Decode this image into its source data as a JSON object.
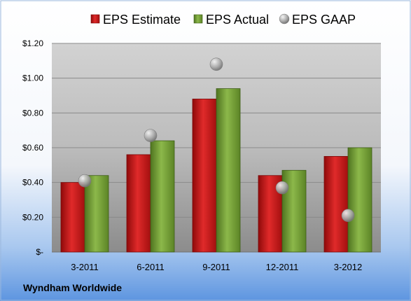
{
  "chart_data": {
    "type": "bar",
    "categories": [
      "3-2011",
      "6-2011",
      "9-2011",
      "12-2011",
      "3-2012"
    ],
    "series": [
      {
        "name": "EPS Estimate",
        "values": [
          0.4,
          0.56,
          0.88,
          0.44,
          0.55
        ],
        "color": "#cc1111",
        "kind": "bar"
      },
      {
        "name": "EPS Actual",
        "values": [
          0.44,
          0.64,
          0.94,
          0.47,
          0.6
        ],
        "color": "#6e9b2e",
        "kind": "bar"
      },
      {
        "name": "EPS GAAP",
        "values": [
          0.41,
          0.67,
          1.08,
          0.37,
          0.21
        ],
        "color": "#a0a0a0",
        "kind": "marker"
      }
    ],
    "ylim": [
      0,
      1.2
    ],
    "yticks": [
      0,
      0.2,
      0.4,
      0.6,
      0.8,
      1.0,
      1.2
    ],
    "ytick_labels": [
      "$-",
      "$0.20",
      "$0.40",
      "$0.60",
      "$0.80",
      "$1.00",
      "$1.20"
    ],
    "grid": true,
    "legend_position": "top",
    "company": "Wyndham Worldwide"
  }
}
